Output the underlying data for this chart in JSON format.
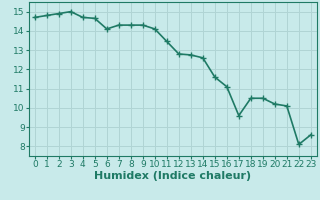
{
  "x": [
    0,
    1,
    2,
    3,
    4,
    5,
    6,
    7,
    8,
    9,
    10,
    11,
    12,
    13,
    14,
    15,
    16,
    17,
    18,
    19,
    20,
    21,
    22,
    23
  ],
  "y": [
    14.7,
    14.8,
    14.9,
    15.0,
    14.7,
    14.65,
    14.1,
    14.3,
    14.3,
    14.3,
    14.1,
    13.45,
    12.8,
    12.75,
    12.6,
    11.6,
    11.1,
    9.6,
    10.5,
    10.5,
    10.2,
    10.1,
    8.1,
    8.6
  ],
  "line_color": "#1f7a65",
  "marker": "+",
  "marker_size": 4,
  "bg_color": "#c8eaea",
  "grid_color": "#b0d4d4",
  "xlabel": "Humidex (Indice chaleur)",
  "ylim": [
    7.5,
    15.5
  ],
  "xlim": [
    -0.5,
    23.5
  ],
  "yticks": [
    8,
    9,
    10,
    11,
    12,
    13,
    14,
    15
  ],
  "xticks": [
    0,
    1,
    2,
    3,
    4,
    5,
    6,
    7,
    8,
    9,
    10,
    11,
    12,
    13,
    14,
    15,
    16,
    17,
    18,
    19,
    20,
    21,
    22,
    23
  ],
  "tick_color": "#1f7a65",
  "label_color": "#1f7a65",
  "font_size_xlabel": 8,
  "font_size_ticks": 6.5,
  "line_width": 1.2
}
